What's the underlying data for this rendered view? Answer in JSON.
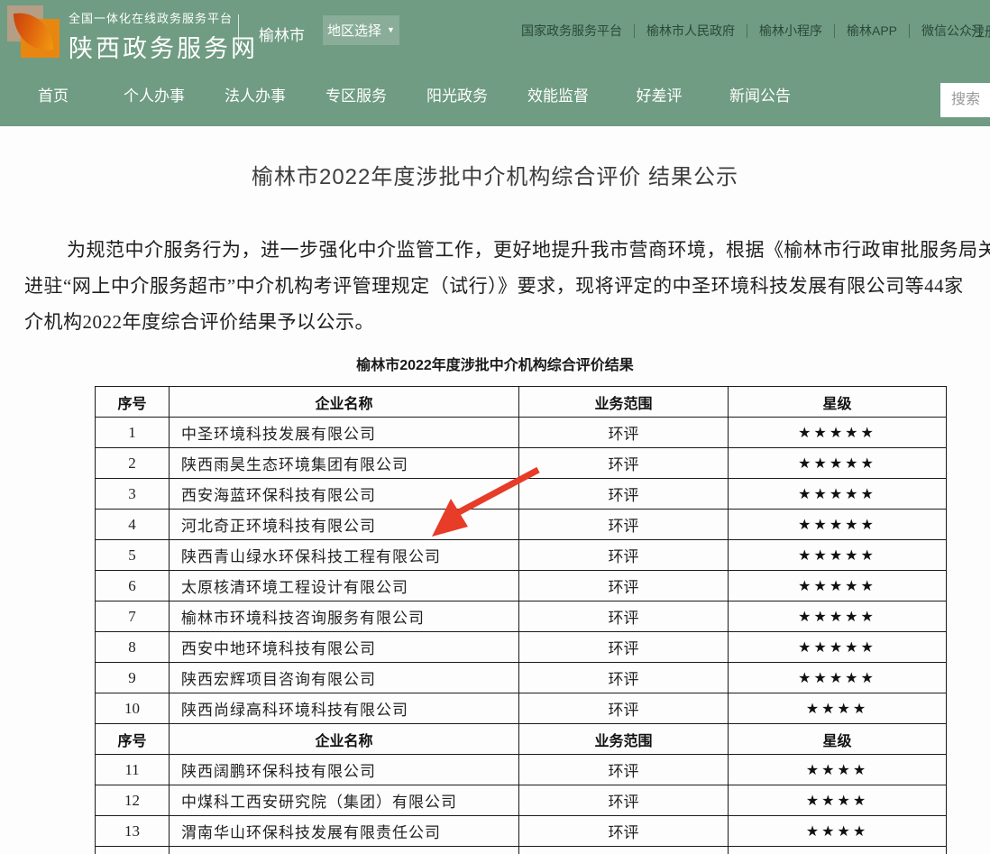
{
  "colors": {
    "green": "#6f9c82",
    "arrow_red": "#e63c28",
    "star_black": "#111111"
  },
  "header": {
    "platform_tagline": "全国一体化在线政务服务平台",
    "site_name": "陕西政务服务网",
    "city": "榆林市",
    "region_selector_label": "地区选择",
    "links": [
      "国家政务服务平台",
      "榆林市人民政府",
      "榆林小程序",
      "榆林APP",
      "微信公众号"
    ],
    "register_label": "注册"
  },
  "nav": {
    "items": [
      "首页",
      "个人办事",
      "法人办事",
      "专区服务",
      "阳光政务",
      "效能监督",
      "好差评",
      "新闻公告"
    ],
    "search_placeholder": "搜索"
  },
  "article": {
    "title": "榆林市2022年度涉批中介机构综合评价 结果公示",
    "paragraph_lines": [
      "为规范中介服务行为，进一步强化中介监管工作，更好地提升我市营商环境，根据《榆林市行政审批服务局关",
      "进驻“网上中介服务超市”中介机构考评管理规定（试行）》要求，现将评定的中圣环境科技发展有限公司等44家",
      "介机构2022年度综合评价结果予以公示。"
    ],
    "table_caption": "榆林市2022年度涉批中介机构综合评价结果"
  },
  "table": {
    "columns": [
      "序号",
      "企业名称",
      "业务范围",
      "星级"
    ],
    "star_char": "★",
    "entries": [
      {
        "type": "data",
        "no": "1",
        "name": "中圣环境科技发展有限公司",
        "scope": "环评",
        "stars": 5
      },
      {
        "type": "data",
        "no": "2",
        "name": "陕西雨昊生态环境集团有限公司",
        "scope": "环评",
        "stars": 5
      },
      {
        "type": "data",
        "no": "3",
        "name": "西安海蓝环保科技有限公司",
        "scope": "环评",
        "stars": 5
      },
      {
        "type": "data",
        "no": "4",
        "name": "河北奇正环境科技有限公司",
        "scope": "环评",
        "stars": 5
      },
      {
        "type": "data",
        "no": "5",
        "name": "陕西青山绿水环保科技工程有限公司",
        "scope": "环评",
        "stars": 5
      },
      {
        "type": "data",
        "no": "6",
        "name": "太原核清环境工程设计有限公司",
        "scope": "环评",
        "stars": 5
      },
      {
        "type": "data",
        "no": "7",
        "name": "榆林市环境科技咨询服务有限公司",
        "scope": "环评",
        "stars": 5
      },
      {
        "type": "data",
        "no": "8",
        "name": "西安中地环境科技有限公司",
        "scope": "环评",
        "stars": 5
      },
      {
        "type": "data",
        "no": "9",
        "name": "陕西宏辉项目咨询有限公司",
        "scope": "环评",
        "stars": 5
      },
      {
        "type": "data",
        "no": "10",
        "name": "陕西尚绿高科环境科技有限公司",
        "scope": "环评",
        "stars": 4
      },
      {
        "type": "header"
      },
      {
        "type": "data",
        "no": "11",
        "name": "陕西阔鹏环保科技有限公司",
        "scope": "环评",
        "stars": 4
      },
      {
        "type": "data",
        "no": "12",
        "name": "中煤科工西安研究院（集团）有限公司",
        "scope": "环评",
        "stars": 4
      },
      {
        "type": "data",
        "no": "13",
        "name": "渭南华山环保科技发展有限责任公司",
        "scope": "环评",
        "stars": 4
      },
      {
        "type": "partial"
      }
    ]
  }
}
